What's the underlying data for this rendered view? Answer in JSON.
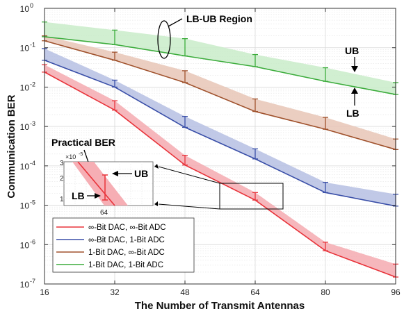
{
  "chart_data": {
    "type": "line",
    "xlabel": "The Number of Transmit Antennas",
    "ylabel": "Communication BER",
    "x": [
      16,
      32,
      48,
      64,
      80,
      96
    ],
    "xlim": [
      16,
      96
    ],
    "ylim": [
      1e-07,
      1
    ],
    "yscale": "log",
    "grid": true,
    "x_tick_labels": [
      "16",
      "32",
      "48",
      "64",
      "80",
      "96"
    ],
    "y_tick_labels": [
      {
        "value": 1,
        "base": "10",
        "exp": "0"
      },
      {
        "value": 0.1,
        "base": "10",
        "exp": "-1"
      },
      {
        "value": 0.01,
        "base": "10",
        "exp": "-2"
      },
      {
        "value": 0.001,
        "base": "10",
        "exp": "-3"
      },
      {
        "value": 0.0001,
        "base": "10",
        "exp": "-4"
      },
      {
        "value": 1e-05,
        "base": "10",
        "exp": "-5"
      },
      {
        "value": 1e-06,
        "base": "10",
        "exp": "-6"
      },
      {
        "value": 1e-07,
        "base": "10",
        "exp": "-7"
      }
    ],
    "legend_position": "bottom-left",
    "series": [
      {
        "name": "∞-Bit DAC, ∞-Bit ADC",
        "color": "#e8333a",
        "band": "#f5aab0",
        "lb": [
          0.024,
          0.0026,
          0.000105,
          1.35e-05,
          7e-07,
          1.5e-07
        ],
        "ub": [
          0.037,
          0.0045,
          0.000185,
          2.1e-05,
          1.15e-06,
          3.2e-07
        ]
      },
      {
        "name": "∞-Bit DAC, 1-Bit ADC",
        "color": "#3a4fa8",
        "band": "#b6bfe3",
        "lb": [
          0.048,
          0.01,
          0.00095,
          0.00015,
          2.1e-05,
          9.5e-06
        ],
        "ub": [
          0.095,
          0.015,
          0.0018,
          0.00027,
          3.8e-05,
          1.9e-05
        ]
      },
      {
        "name": "1-Bit DAC, ∞-Bit ADC",
        "color": "#a0522d",
        "band": "#e8c6b6",
        "lb": [
          0.15,
          0.048,
          0.013,
          0.0024,
          0.00085,
          0.00026
        ],
        "ub": [
          0.2,
          0.077,
          0.026,
          0.005,
          0.0017,
          0.00048
        ]
      },
      {
        "name": "1-Bit DAC, 1-Bit ADC",
        "color": "#3cac3c",
        "band": "#c9ecc9",
        "lb": [
          0.19,
          0.12,
          0.062,
          0.033,
          0.014,
          0.0065
        ],
        "ub": [
          0.45,
          0.28,
          0.17,
          0.067,
          0.031,
          0.013
        ]
      }
    ],
    "annotations": {
      "lb_ub_region": "LB-UB Region",
      "ub": "UB",
      "lb": "LB",
      "practical_ber": "Practical BER"
    },
    "inset": {
      "exponent_label": "×10",
      "exponent": "-5",
      "y_tick_labels": [
        "3",
        "2",
        "1"
      ],
      "x_tick_label": "64",
      "ub": "UB",
      "lb": "LB"
    }
  }
}
